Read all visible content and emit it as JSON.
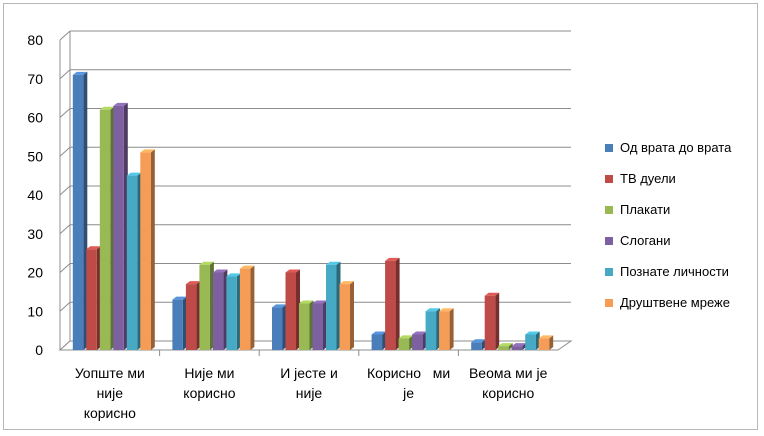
{
  "chart_data": {
    "type": "bar",
    "categories": [
      [
        "Уопште ми",
        "није",
        "корисно"
      ],
      [
        "Није ми",
        "корисно"
      ],
      [
        "И јесте и",
        "није"
      ],
      [
        "Корисно   ми",
        "је"
      ],
      [
        "Веома ми је",
        "корисно"
      ]
    ],
    "series": [
      {
        "name": "Од врата до врата",
        "color": "#4a7ebb",
        "values": [
          71,
          13,
          11,
          4,
          2
        ]
      },
      {
        "name": "ТВ дуели",
        "color": "#be4b48",
        "values": [
          26,
          17,
          20,
          23,
          14
        ]
      },
      {
        "name": "Плакати",
        "color": "#98b954",
        "values": [
          62,
          22,
          12,
          3,
          1
        ]
      },
      {
        "name": "Слогани",
        "color": "#7d60a0",
        "values": [
          63,
          20,
          12,
          4,
          1
        ]
      },
      {
        "name": "Познате личности",
        "color": "#46aac5",
        "values": [
          45,
          19,
          22,
          10,
          4
        ]
      },
      {
        "name": "Друштвене мреже",
        "color": "#f59d56",
        "values": [
          51,
          21,
          17,
          10,
          3
        ]
      }
    ],
    "ylim": [
      0,
      80
    ],
    "yticks": [
      0,
      10,
      20,
      30,
      40,
      50,
      60,
      70,
      80
    ],
    "grid": true,
    "style": "3d-clustered-column",
    "legend_position": "right"
  }
}
